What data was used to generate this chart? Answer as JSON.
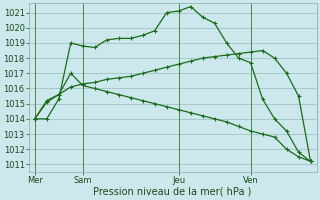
{
  "background_color": "#cce8ec",
  "grid_color": "#99bbbb",
  "line_color": "#1a6b1a",
  "ylabel_min": 1011,
  "ylabel_max": 1021,
  "xlabel": "Pression niveau de la mer( hPa )",
  "x_ticks_labels": [
    "Mer",
    "Sam",
    "Jeu",
    "Ven"
  ],
  "x_ticks_pos": [
    0,
    4,
    12,
    18
  ],
  "vline_pos": [
    0,
    4,
    12,
    18
  ],
  "series1": [
    1014.0,
    1014.0,
    1015.3,
    1019.0,
    1018.8,
    1018.7,
    1019.2,
    1019.3,
    1019.3,
    1019.5,
    1019.8,
    1021.0,
    1021.1,
    1021.4,
    1020.7,
    1020.3,
    1019.0,
    1018.0,
    1017.7,
    1015.3,
    1014.0,
    1013.2,
    1011.8,
    1011.2
  ],
  "series2": [
    1014.0,
    1015.2,
    1015.6,
    1016.1,
    1016.3,
    1016.4,
    1016.6,
    1016.7,
    1016.8,
    1017.0,
    1017.2,
    1017.4,
    1017.6,
    1017.8,
    1018.0,
    1018.1,
    1018.2,
    1018.3,
    1018.4,
    1018.5,
    1018.0,
    1017.0,
    1015.5,
    1011.2
  ],
  "series3": [
    1014.0,
    1015.1,
    1015.6,
    1017.0,
    1016.2,
    1016.0,
    1015.8,
    1015.6,
    1015.4,
    1015.2,
    1015.0,
    1014.8,
    1014.6,
    1014.4,
    1014.2,
    1014.0,
    1013.8,
    1013.5,
    1013.2,
    1013.0,
    1012.8,
    1012.0,
    1011.5,
    1011.2
  ],
  "num_points": 24
}
